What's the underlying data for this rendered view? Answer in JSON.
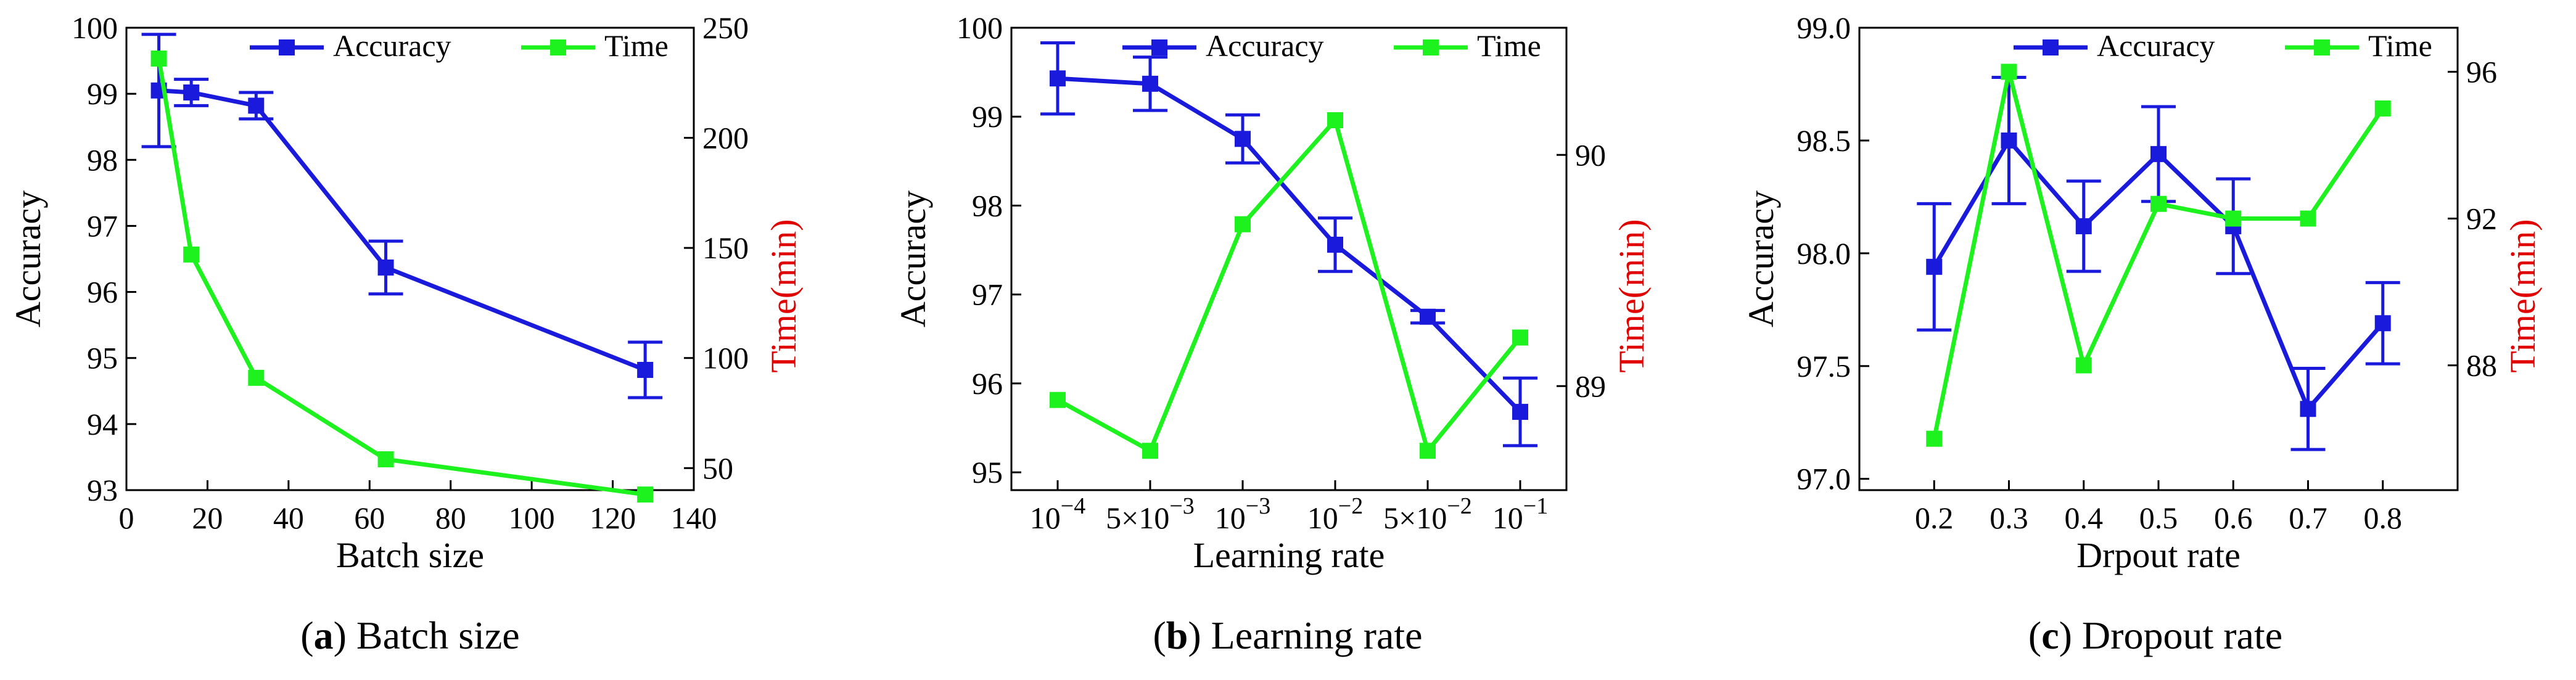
{
  "colors": {
    "accuracy": "#1a1adc",
    "time": "#1ef21e",
    "time_axis_label": "#e00000",
    "frame": "#000000"
  },
  "legend": {
    "accuracy": "Accuracy",
    "time": "Time"
  },
  "chart_data": [
    {
      "type": "line",
      "caption_letter": "(a)",
      "caption_text": " Batch size",
      "xlabel": "Batch size",
      "ylabel": "Accuracy",
      "y2label": "Time(min)",
      "xlim": [
        0,
        140
      ],
      "ylim": [
        93,
        100
      ],
      "y2lim": [
        40,
        250
      ],
      "xticks": [
        0,
        20,
        40,
        60,
        80,
        100,
        120,
        140
      ],
      "yticks": [
        93,
        94,
        95,
        96,
        97,
        98,
        99,
        100
      ],
      "y2ticks": [
        50,
        100,
        150,
        200,
        250
      ],
      "xtick_labels": [
        "0",
        "20",
        "40",
        "60",
        "80",
        "100",
        "120",
        "140"
      ],
      "ytick_labels": [
        "93",
        "94",
        "95",
        "96",
        "97",
        "98",
        "99",
        "100"
      ],
      "y2tick_labels": [
        "50",
        "100",
        "150",
        "200",
        "250"
      ],
      "series": [
        {
          "name": "Accuracy",
          "axis": "left",
          "x": [
            8,
            16,
            32,
            64,
            128
          ],
          "values": [
            99.05,
            99.02,
            98.82,
            96.37,
            94.82
          ],
          "err": [
            0.85,
            0.2,
            0.2,
            0.4,
            0.42
          ]
        },
        {
          "name": "Time",
          "axis": "right",
          "x": [
            8,
            16,
            32,
            64,
            128
          ],
          "values": [
            236,
            147,
            91,
            54,
            38
          ]
        }
      ]
    },
    {
      "type": "line",
      "caption_letter": "(b)",
      "caption_text": " Learning rate",
      "xlabel": "Learning rate",
      "ylabel": "Accuracy",
      "y2label": "Time(min)",
      "xlim": [
        -0.5,
        5.5
      ],
      "ylim": [
        94.8,
        100
      ],
      "y2lim": [
        88.55,
        90.55
      ],
      "xticks": [
        0,
        1,
        2,
        3,
        4,
        5
      ],
      "yticks": [
        95,
        96,
        97,
        98,
        99,
        100
      ],
      "y2ticks": [
        89,
        90
      ],
      "xtick_labels": [
        "10⁻⁴",
        "5×10⁻³",
        "10⁻³",
        "10⁻²",
        "5×10⁻²",
        "10⁻¹"
      ],
      "ytick_labels": [
        "95",
        "96",
        "97",
        "98",
        "99",
        "100"
      ],
      "y2tick_labels": [
        "89",
        "90"
      ],
      "series": [
        {
          "name": "Accuracy",
          "axis": "left",
          "x": [
            0,
            1,
            2,
            3,
            4,
            5
          ],
          "values": [
            99.43,
            99.37,
            98.75,
            97.56,
            96.75,
            95.68
          ],
          "err": [
            0.4,
            0.3,
            0.27,
            0.3,
            0.07,
            0.38
          ]
        },
        {
          "name": "Time",
          "axis": "right",
          "x": [
            0,
            1,
            2,
            3,
            4,
            5
          ],
          "values": [
            88.94,
            88.72,
            89.7,
            90.15,
            88.72,
            89.21
          ]
        }
      ]
    },
    {
      "type": "line",
      "caption_letter": "(c)",
      "caption_text": " Dropout rate",
      "xlabel": "Drpout rate",
      "ylabel": "Accuracy",
      "y2label": "Time(min)",
      "xlim": [
        0.1,
        0.9
      ],
      "ylim": [
        96.95,
        99.0
      ],
      "y2lim": [
        84.6,
        97.2
      ],
      "xticks": [
        0.2,
        0.3,
        0.4,
        0.5,
        0.6,
        0.7,
        0.8
      ],
      "yticks": [
        97.0,
        97.5,
        98.0,
        98.5,
        99.0
      ],
      "y2ticks": [
        88,
        92,
        96
      ],
      "xtick_labels": [
        "0.2",
        "0.3",
        "0.4",
        "0.5",
        "0.6",
        "0.7",
        "0.8"
      ],
      "ytick_labels": [
        "97.0",
        "97.5",
        "98.0",
        "98.5",
        "99.0"
      ],
      "y2tick_labels": [
        "88",
        "92",
        "96"
      ],
      "series": [
        {
          "name": "Accuracy",
          "axis": "left",
          "x": [
            0.2,
            0.3,
            0.4,
            0.5,
            0.6,
            0.7,
            0.8
          ],
          "values": [
            97.94,
            98.5,
            98.12,
            98.44,
            98.12,
            97.31,
            97.69
          ],
          "err": [
            0.28,
            0.28,
            0.2,
            0.21,
            0.21,
            0.18,
            0.18
          ]
        },
        {
          "name": "Time",
          "axis": "right",
          "x": [
            0.2,
            0.3,
            0.4,
            0.5,
            0.6,
            0.7,
            0.8
          ],
          "values": [
            86.0,
            96.0,
            88.0,
            92.4,
            92.0,
            92.0,
            95.0
          ]
        }
      ]
    }
  ]
}
